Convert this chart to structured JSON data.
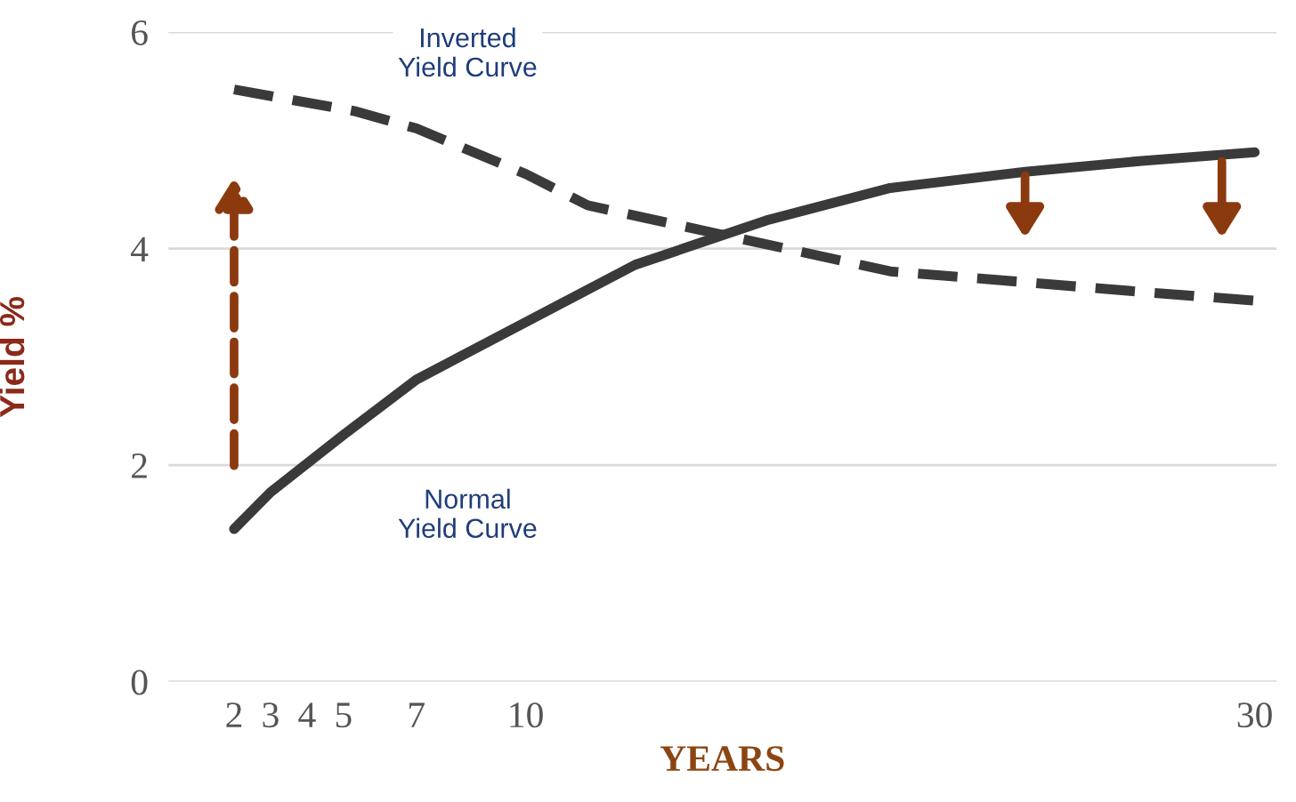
{
  "chart_data": {
    "type": "line",
    "xlabel": "YEARS",
    "ylabel": "Yield %",
    "xlim": [
      0.2,
      30.6
    ],
    "xticks": [
      2,
      3,
      4,
      5,
      7,
      10,
      30
    ],
    "ylim": [
      0,
      6
    ],
    "yticks": [
      0,
      2,
      4,
      6
    ],
    "grid": "y",
    "legend": false,
    "marker": "none",
    "series": [
      {
        "color": "#3a3a3a",
        "line_style": "solid",
        "x": [
          2,
          3,
          5,
          7,
          10,
          13,
          16.6,
          20,
          23.7,
          26.9,
          30
        ],
        "values": [
          1.41,
          1.75,
          2.28,
          2.79,
          3.32,
          3.85,
          4.26,
          4.56,
          4.71,
          4.81,
          4.89
        ]
      },
      {
        "color": "#3a3a3a",
        "line_style": "dashed",
        "x": [
          2,
          5.3,
          7,
          10,
          11.7,
          15.1,
          20,
          23.7,
          26.9,
          30
        ],
        "values": [
          5.47,
          5.27,
          5.11,
          4.69,
          4.4,
          4.15,
          3.79,
          3.69,
          3.6,
          3.52
        ]
      }
    ],
    "annotations": [
      "Inverted\nYield Curve",
      "Normal\nYield Curve"
    ]
  }
}
